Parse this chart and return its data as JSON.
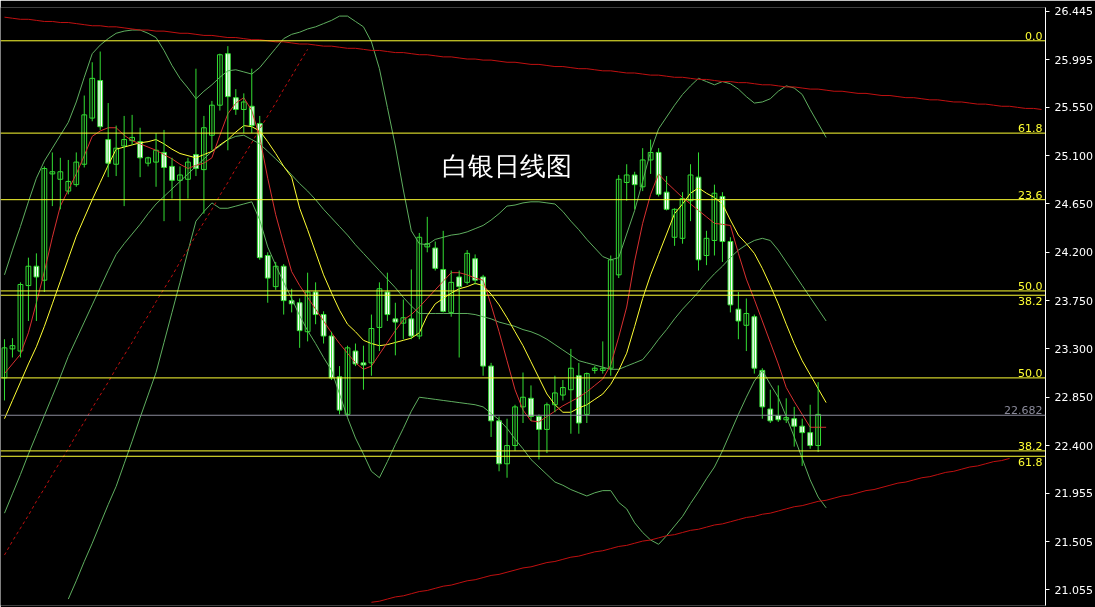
{
  "chart_data": {
    "type": "candlestick",
    "title": "白银日线图",
    "color": "#33dd33",
    "categories": [
      null,
      null,
      null,
      null,
      null,
      null,
      null,
      null,
      null,
      null,
      null,
      null,
      null,
      null,
      null,
      null,
      null,
      null,
      null,
      null,
      null,
      null,
      null,
      null,
      null,
      null,
      null,
      null,
      null,
      null,
      null,
      null,
      null,
      null,
      null,
      null,
      null,
      null,
      null,
      null,
      null,
      null,
      null,
      null,
      null,
      null,
      null,
      null,
      null,
      null,
      null,
      null,
      null,
      null,
      null,
      null,
      null,
      null,
      null,
      null,
      null,
      null,
      null,
      null,
      null,
      null,
      null,
      null,
      null,
      null,
      null,
      null,
      null,
      null,
      null,
      null,
      null,
      null,
      null,
      null,
      null,
      null,
      null,
      null,
      null,
      null,
      null,
      null,
      null,
      null,
      null,
      null,
      null,
      null,
      null,
      null,
      null,
      null,
      null,
      null,
      null,
      null,
      null,
      null,
      null,
      null,
      null,
      null,
      null,
      null,
      null,
      null,
      null,
      null,
      null,
      null,
      null,
      null,
      null,
      null,
      null,
      null,
      null,
      null,
      null,
      null,
      null,
      null,
      null,
      null,
      null
    ],
    "ohlc": [
      [
        23.03,
        23.39,
        22.82,
        23.31
      ],
      [
        23.3,
        23.4,
        23.22,
        23.33
      ],
      [
        23.28,
        23.92,
        23.22,
        23.9
      ],
      [
        23.89,
        24.15,
        23.56,
        24.07
      ],
      [
        24.07,
        24.19,
        23.56,
        23.97
      ],
      [
        23.94,
        25.0,
        23.83,
        24.98
      ],
      [
        24.93,
        25.13,
        24.63,
        24.95
      ],
      [
        24.88,
        25.08,
        24.6,
        24.95
      ],
      [
        24.77,
        25.06,
        24.74,
        24.86
      ],
      [
        24.83,
        25.13,
        24.81,
        25.04
      ],
      [
        25.02,
        25.66,
        24.99,
        25.48
      ],
      [
        25.45,
        25.97,
        25.42,
        25.82
      ],
      [
        25.8,
        26.07,
        25.34,
        25.37
      ],
      [
        25.25,
        25.59,
        24.9,
        25.03
      ],
      [
        25.02,
        25.38,
        24.91,
        25.17
      ],
      [
        25.19,
        25.47,
        24.63,
        25.25
      ],
      [
        25.24,
        25.48,
        25.2,
        25.27
      ],
      [
        25.23,
        25.36,
        24.9,
        25.08
      ],
      [
        25.03,
        25.09,
        25.0,
        25.08
      ],
      [
        25.04,
        25.31,
        24.81,
        25.15
      ],
      [
        25.13,
        25.34,
        24.49,
        24.99
      ],
      [
        25.0,
        25.08,
        24.7,
        24.87
      ],
      [
        24.87,
        25.0,
        24.49,
        24.92
      ],
      [
        24.88,
        25.08,
        24.7,
        25.04
      ],
      [
        25.11,
        25.91,
        24.91,
        24.98
      ],
      [
        24.97,
        25.47,
        24.56,
        25.36
      ],
      [
        25.29,
        25.61,
        25.15,
        25.57
      ],
      [
        25.57,
        26.05,
        25.52,
        26.04
      ],
      [
        26.05,
        26.12,
        25.15,
        25.65
      ],
      [
        25.64,
        25.72,
        25.48,
        25.53
      ],
      [
        25.53,
        25.68,
        25.31,
        25.6
      ],
      [
        25.56,
        25.91,
        25.31,
        25.38
      ],
      [
        25.4,
        25.47,
        24.13,
        24.15
      ],
      [
        24.17,
        24.2,
        23.73,
        23.96
      ],
      [
        23.88,
        24.11,
        23.85,
        24.07
      ],
      [
        24.07,
        24.09,
        23.62,
        23.75
      ],
      [
        23.75,
        23.86,
        23.64,
        23.72
      ],
      [
        23.73,
        23.77,
        23.31,
        23.47
      ],
      [
        23.46,
        24.01,
        23.37,
        23.83
      ],
      [
        23.83,
        23.92,
        23.53,
        23.62
      ],
      [
        23.62,
        23.65,
        23.35,
        23.42
      ],
      [
        23.42,
        23.46,
        23.01,
        23.03
      ],
      [
        23.04,
        23.14,
        22.69,
        22.73
      ],
      [
        22.69,
        23.33,
        22.67,
        23.31
      ],
      [
        23.28,
        23.35,
        23.14,
        23.16
      ],
      [
        23.17,
        23.33,
        22.92,
        23.15
      ],
      [
        23.17,
        23.62,
        23.05,
        23.49
      ],
      [
        23.5,
        23.92,
        23.28,
        23.86
      ],
      [
        23.83,
        24.01,
        23.56,
        23.62
      ],
      [
        23.58,
        23.73,
        23.24,
        23.55
      ],
      [
        23.54,
        23.76,
        23.39,
        23.59
      ],
      [
        23.58,
        24.04,
        23.39,
        23.42
      ],
      [
        23.42,
        24.38,
        23.39,
        24.34
      ],
      [
        24.25,
        24.53,
        24.2,
        24.28
      ],
      [
        24.24,
        24.3,
        24.03,
        24.05
      ],
      [
        24.04,
        24.4,
        23.64,
        23.65
      ],
      [
        23.64,
        24.03,
        23.6,
        23.92
      ],
      [
        23.97,
        24.03,
        23.22,
        23.88
      ],
      [
        23.92,
        24.22,
        23.9,
        24.19
      ],
      [
        24.14,
        24.18,
        23.9,
        23.94
      ],
      [
        23.97,
        23.99,
        23.05,
        23.14
      ],
      [
        23.14,
        23.17,
        22.48,
        22.63
      ],
      [
        22.63,
        22.67,
        22.16,
        22.23
      ],
      [
        22.23,
        22.65,
        22.1,
        22.4
      ],
      [
        22.4,
        22.78,
        22.35,
        22.76
      ],
      [
        22.76,
        23.08,
        22.61,
        22.85
      ],
      [
        22.84,
        22.96,
        22.63,
        22.67
      ],
      [
        22.67,
        22.69,
        22.27,
        22.55
      ],
      [
        22.55,
        22.8,
        22.33,
        22.78
      ],
      [
        22.78,
        23.05,
        22.71,
        22.89
      ],
      [
        22.87,
        23.01,
        22.82,
        22.94
      ],
      [
        22.92,
        23.3,
        22.51,
        23.12
      ],
      [
        23.05,
        23.17,
        22.51,
        22.61
      ],
      [
        22.69,
        23.08,
        22.61,
        23.07
      ],
      [
        23.1,
        23.14,
        23.07,
        23.12
      ],
      [
        23.1,
        23.37,
        23.07,
        23.12
      ],
      [
        23.12,
        24.17,
        23.05,
        24.13
      ],
      [
        23.99,
        24.92,
        23.96,
        24.88
      ],
      [
        24.85,
        25.02,
        24.68,
        24.92
      ],
      [
        24.92,
        24.95,
        24.6,
        24.83
      ],
      [
        24.81,
        25.17,
        24.77,
        25.06
      ],
      [
        25.06,
        25.25,
        24.93,
        25.13
      ],
      [
        25.13,
        25.17,
        24.72,
        24.74
      ],
      [
        24.76,
        24.91,
        24.59,
        24.6
      ],
      [
        24.34,
        24.61,
        24.26,
        24.6
      ],
      [
        24.33,
        24.76,
        24.28,
        24.7
      ],
      [
        24.68,
        25.02,
        24.49,
        24.92
      ],
      [
        24.9,
        25.13,
        24.03,
        24.13
      ],
      [
        24.17,
        24.4,
        24.08,
        24.33
      ],
      [
        24.31,
        24.83,
        24.17,
        24.75
      ],
      [
        24.72,
        24.76,
        24.11,
        24.3
      ],
      [
        24.3,
        24.34,
        23.64,
        23.71
      ],
      [
        23.67,
        23.83,
        23.39,
        23.56
      ],
      [
        23.52,
        23.77,
        23.28,
        23.63
      ],
      [
        23.6,
        23.62,
        23.07,
        23.12
      ],
      [
        23.1,
        23.12,
        22.65,
        22.76
      ],
      [
        22.74,
        22.92,
        22.61,
        22.63
      ],
      [
        22.68,
        22.96,
        22.62,
        22.64
      ],
      [
        22.64,
        22.84,
        22.61,
        22.66
      ],
      [
        22.65,
        22.76,
        22.39,
        22.58
      ],
      [
        22.58,
        22.65,
        22.21,
        22.52
      ],
      [
        22.52,
        22.78,
        22.37,
        22.4
      ],
      [
        22.4,
        22.99,
        22.34,
        22.69
      ],
      null,
      null,
      null,
      null,
      null,
      null,
      null,
      null,
      null,
      null,
      null,
      null,
      null,
      null,
      null,
      null,
      null,
      null,
      null,
      null,
      null,
      null,
      null,
      null,
      null,
      null,
      null,
      null
    ],
    "series": [
      {
        "type": "line",
        "color": "#5fae5f",
        "values": [
          23.99,
          24.22,
          24.44,
          24.67,
          24.89,
          25.05,
          25.17,
          25.29,
          25.41,
          25.6,
          25.83,
          26.05,
          26.13,
          26.19,
          26.24,
          26.26,
          26.27,
          26.27,
          26.24,
          26.2,
          26.08,
          25.94,
          25.82,
          25.73,
          25.63,
          25.7,
          25.76,
          25.83,
          25.89,
          25.9,
          25.88,
          25.86,
          25.92,
          26.01,
          26.1,
          26.19,
          26.23,
          26.25,
          26.28,
          26.3,
          26.33,
          26.36,
          26.4,
          26.4,
          26.35,
          26.3,
          26.16,
          25.91,
          25.55,
          25.19,
          24.78,
          24.4,
          24.28,
          24.27,
          24.32,
          24.34,
          24.36,
          24.37,
          24.39,
          24.42,
          24.45,
          24.5,
          24.56,
          24.63,
          24.64,
          24.66,
          24.67,
          24.67,
          24.66,
          24.65,
          24.58,
          24.49,
          24.41,
          24.32,
          24.24,
          24.16,
          24.13,
          24.15,
          24.37,
          24.59,
          24.86,
          25.14,
          25.35,
          25.46,
          25.57,
          25.67,
          25.75,
          25.82,
          25.79,
          25.76,
          25.79,
          25.77,
          25.72,
          25.65,
          25.59,
          25.6,
          25.63,
          25.7,
          25.75,
          25.73,
          25.67,
          25.53,
          25.4,
          25.27,
          null,
          null,
          null,
          null,
          null,
          null,
          null,
          null,
          null,
          null,
          null,
          null,
          null,
          null,
          null,
          null,
          null,
          null,
          null,
          null,
          null,
          null,
          null,
          null,
          null,
          null,
          null
        ]
      },
      {
        "type": "line",
        "color": "#5fae5f",
        "values": [
          21.77,
          21.95,
          22.13,
          22.32,
          22.5,
          22.68,
          22.86,
          23.04,
          23.23,
          23.39,
          23.55,
          23.71,
          23.87,
          24.03,
          24.18,
          24.28,
          24.37,
          24.46,
          24.56,
          24.65,
          24.72,
          24.79,
          24.86,
          24.93,
          25.0,
          25.07,
          25.14,
          25.19,
          25.25,
          25.28,
          25.29,
          25.25,
          25.21,
          25.14,
          25.07,
          25.0,
          24.92,
          24.84,
          24.77,
          24.69,
          24.6,
          24.52,
          24.44,
          24.36,
          24.27,
          24.19,
          24.11,
          24.03,
          23.95,
          23.87,
          23.78,
          23.7,
          23.63,
          23.63,
          23.63,
          23.63,
          23.63,
          23.63,
          23.63,
          23.62,
          23.6,
          23.58,
          23.55,
          23.53,
          23.51,
          23.48,
          23.46,
          23.43,
          23.39,
          23.34,
          23.29,
          23.24,
          23.19,
          23.17,
          23.15,
          23.13,
          23.11,
          23.11,
          23.14,
          23.17,
          23.2,
          23.29,
          23.39,
          23.48,
          23.58,
          23.67,
          23.75,
          23.83,
          23.92,
          24.0,
          24.07,
          24.15,
          24.22,
          24.27,
          24.31,
          24.33,
          24.31,
          24.22,
          24.11,
          24.0,
          23.89,
          23.78,
          23.67,
          23.56,
          null,
          null,
          null,
          null,
          null,
          null,
          null,
          null,
          null,
          null,
          null,
          null,
          null,
          null,
          null,
          null,
          null,
          null,
          null,
          null,
          null,
          null,
          null,
          null,
          null,
          null,
          null
        ]
      },
      {
        "type": "line",
        "color": "#5fae5f",
        "values": [
          null,
          null,
          null,
          null,
          null,
          null,
          null,
          null,
          20.97,
          21.14,
          21.32,
          21.49,
          21.67,
          21.85,
          22.02,
          22.23,
          22.44,
          22.66,
          22.87,
          23.08,
          23.36,
          23.64,
          23.92,
          24.21,
          24.49,
          24.58,
          24.66,
          24.61,
          24.61,
          24.63,
          24.65,
          24.67,
          24.5,
          24.25,
          24.08,
          23.92,
          23.77,
          23.61,
          23.47,
          23.35,
          23.22,
          23.1,
          22.88,
          22.66,
          22.47,
          22.32,
          22.16,
          22.1,
          22.25,
          22.41,
          22.56,
          22.72,
          22.85,
          22.84,
          22.83,
          22.82,
          22.81,
          22.8,
          22.79,
          22.78,
          22.76,
          22.7,
          22.64,
          22.56,
          22.46,
          22.37,
          22.27,
          22.2,
          22.13,
          22.06,
          22.03,
          21.99,
          21.96,
          21.93,
          21.96,
          21.98,
          21.98,
          21.87,
          21.81,
          21.68,
          21.59,
          21.52,
          21.48,
          21.56,
          21.65,
          21.74,
          21.86,
          21.97,
          22.09,
          22.2,
          22.35,
          22.52,
          22.69,
          22.85,
          23.0,
          23.1,
          22.97,
          22.85,
          22.67,
          22.48,
          22.28,
          22.08,
          21.92,
          21.82,
          null,
          null,
          null,
          null,
          null,
          null,
          null,
          null,
          null,
          null,
          null,
          null,
          null,
          null,
          null,
          null,
          null,
          null,
          null,
          null,
          null,
          null,
          null,
          null,
          null,
          null,
          null
        ]
      },
      {
        "type": "line",
        "color": "#ffff33",
        "values": [
          22.65,
          22.82,
          22.99,
          23.16,
          23.32,
          23.51,
          23.72,
          23.93,
          24.14,
          24.35,
          24.52,
          24.69,
          24.85,
          25.01,
          25.16,
          25.18,
          25.2,
          25.22,
          25.23,
          25.25,
          25.21,
          25.16,
          25.12,
          25.1,
          25.08,
          25.11,
          25.14,
          25.2,
          25.25,
          25.32,
          25.38,
          25.37,
          25.33,
          25.23,
          25.12,
          25.0,
          24.9,
          24.61,
          24.41,
          24.2,
          23.99,
          23.82,
          23.66,
          23.53,
          23.46,
          23.38,
          23.35,
          23.33,
          23.34,
          23.36,
          23.38,
          23.4,
          23.45,
          23.61,
          23.72,
          23.77,
          23.82,
          23.86,
          23.88,
          23.91,
          23.89,
          23.81,
          23.71,
          23.59,
          23.46,
          23.33,
          23.18,
          23.03,
          22.88,
          22.78,
          22.71,
          22.71,
          22.75,
          22.78,
          22.83,
          22.88,
          22.97,
          23.1,
          23.26,
          23.51,
          23.77,
          23.99,
          24.18,
          24.37,
          24.56,
          24.65,
          24.75,
          24.8,
          24.75,
          24.71,
          24.65,
          24.5,
          24.36,
          24.28,
          24.19,
          24.05,
          23.89,
          23.72,
          23.53,
          23.35,
          23.19,
          23.06,
          22.93,
          22.8,
          null,
          null,
          null,
          null,
          null,
          null,
          null,
          null,
          null,
          null,
          null,
          null,
          null,
          null,
          null,
          null,
          null,
          null,
          null,
          null,
          null,
          null,
          null,
          null,
          null,
          null,
          null
        ]
      },
      {
        "type": "line",
        "color": "#d83030",
        "values": [
          23.07,
          23.16,
          23.25,
          23.45,
          23.73,
          24.02,
          24.34,
          24.63,
          24.78,
          24.93,
          25.1,
          25.28,
          25.33,
          25.36,
          25.36,
          25.29,
          25.24,
          25.21,
          25.18,
          25.15,
          25.11,
          25.07,
          25.02,
          24.98,
          25.01,
          25.03,
          25.08,
          25.29,
          25.49,
          25.59,
          25.64,
          25.52,
          25.27,
          24.89,
          24.55,
          24.28,
          24.02,
          23.89,
          23.78,
          23.67,
          23.56,
          23.45,
          23.35,
          23.26,
          23.17,
          23.11,
          23.14,
          23.25,
          23.36,
          23.47,
          23.57,
          23.62,
          23.69,
          23.77,
          23.85,
          23.93,
          24.01,
          24.01,
          23.99,
          23.96,
          23.94,
          23.71,
          23.46,
          23.19,
          22.92,
          22.73,
          22.63,
          22.62,
          22.67,
          22.72,
          22.77,
          22.81,
          22.85,
          22.9,
          22.96,
          23.02,
          23.15,
          23.41,
          23.69,
          24.12,
          24.47,
          24.74,
          24.93,
          24.85,
          24.78,
          24.71,
          24.65,
          24.59,
          24.53,
          24.47,
          24.46,
          24.45,
          24.19,
          23.95,
          23.76,
          23.56,
          23.36,
          23.16,
          22.94,
          22.81,
          22.69,
          22.57,
          22.57,
          22.57,
          null,
          null,
          null,
          null,
          null,
          null,
          null,
          null,
          null,
          null,
          null,
          null,
          null,
          null,
          null,
          null,
          null,
          null,
          null,
          null,
          null,
          null,
          null,
          null,
          null,
          null,
          null
        ]
      },
      {
        "type": "line",
        "color": "#c01010",
        "values": [
          26.39,
          26.38,
          26.37,
          26.37,
          26.36,
          26.35,
          26.35,
          26.34,
          26.34,
          26.33,
          26.32,
          26.31,
          26.31,
          26.3,
          26.3,
          26.29,
          26.28,
          26.27,
          26.27,
          26.26,
          26.26,
          26.25,
          26.24,
          26.24,
          26.23,
          26.22,
          26.22,
          26.21,
          26.2,
          26.2,
          26.19,
          26.18,
          26.18,
          26.17,
          26.16,
          26.16,
          26.15,
          26.14,
          26.14,
          26.13,
          26.12,
          26.12,
          26.11,
          26.1,
          26.1,
          26.09,
          26.08,
          26.08,
          26.07,
          26.06,
          26.06,
          26.05,
          26.04,
          26.04,
          26.03,
          26.02,
          26.02,
          26.01,
          26.0,
          26.0,
          25.99,
          25.99,
          25.98,
          25.97,
          25.97,
          25.96,
          25.95,
          25.95,
          25.94,
          25.93,
          25.93,
          25.92,
          25.91,
          25.91,
          25.9,
          25.89,
          25.89,
          25.88,
          25.87,
          25.87,
          25.86,
          25.85,
          25.85,
          25.84,
          25.83,
          25.83,
          25.82,
          25.81,
          25.81,
          25.8,
          25.79,
          25.79,
          25.78,
          25.78,
          25.77,
          25.76,
          25.76,
          25.75,
          25.74,
          25.74,
          25.73,
          25.72,
          25.72,
          25.71,
          25.7,
          25.7,
          25.69,
          25.68,
          25.68,
          25.67,
          25.66,
          25.66,
          25.65,
          25.64,
          25.64,
          25.63,
          25.62,
          25.62,
          25.61,
          25.6,
          25.6,
          25.59,
          25.58,
          25.58,
          25.57,
          25.56,
          25.56,
          25.55,
          25.54,
          25.54,
          25.53
        ]
      },
      {
        "type": "line",
        "color": "#c01010",
        "values": [
          null,
          null,
          null,
          null,
          null,
          null,
          null,
          null,
          null,
          null,
          null,
          null,
          null,
          null,
          null,
          null,
          null,
          null,
          null,
          null,
          null,
          null,
          null,
          null,
          null,
          null,
          null,
          null,
          null,
          null,
          null,
          null,
          null,
          null,
          null,
          null,
          null,
          null,
          null,
          null,
          null,
          null,
          null,
          null,
          null,
          null,
          20.94,
          20.95,
          20.97,
          20.99,
          21.0,
          21.02,
          21.04,
          21.05,
          21.07,
          21.09,
          21.1,
          21.12,
          21.14,
          21.15,
          21.17,
          21.19,
          21.2,
          21.22,
          21.24,
          21.26,
          21.27,
          21.29,
          21.31,
          21.32,
          21.34,
          21.36,
          21.37,
          21.39,
          21.41,
          21.42,
          21.44,
          21.46,
          21.47,
          21.49,
          21.51,
          21.52,
          21.54,
          21.56,
          21.57,
          21.59,
          21.61,
          21.62,
          21.64,
          21.66,
          21.67,
          21.69,
          21.71,
          21.73,
          21.74,
          21.76,
          21.77,
          21.79,
          21.81,
          21.83,
          21.84,
          21.86,
          21.88,
          21.89,
          21.91,
          21.93,
          21.94,
          21.96,
          21.98,
          21.99,
          22.01,
          22.03,
          22.05,
          22.06,
          22.08,
          22.1,
          22.11,
          22.13,
          22.15,
          22.16,
          22.18,
          22.2,
          22.21,
          22.23,
          22.25,
          22.26,
          22.28,
          null,
          null,
          null,
          null
        ]
      },
      {
        "type": "line",
        "color": "#c01010",
        "line_style": "dashed",
        "values": [
          21.38,
          21.51,
          21.63,
          21.75,
          21.88,
          22.0,
          22.13,
          22.25,
          22.37,
          22.5,
          22.62,
          22.75,
          22.87,
          22.99,
          23.12,
          23.24,
          23.36,
          23.49,
          23.61,
          23.74,
          23.86,
          23.98,
          24.11,
          24.23,
          24.36,
          24.48,
          24.6,
          24.73,
          24.85,
          24.98,
          25.1,
          25.22,
          25.35,
          25.47,
          25.59,
          25.72,
          25.84,
          25.97,
          26.09,
          null,
          null,
          null,
          null,
          null,
          null,
          null,
          null,
          null,
          null,
          null,
          null,
          null,
          null,
          null,
          null,
          null,
          null,
          null,
          null,
          null,
          null,
          null,
          null,
          null,
          null,
          null,
          null,
          null,
          null,
          null,
          null,
          null,
          null,
          null,
          null,
          null,
          null,
          null,
          null,
          null,
          null,
          null,
          null,
          null,
          null,
          null,
          null,
          null,
          null,
          null,
          null,
          null,
          null,
          null,
          null,
          null,
          null,
          null,
          null,
          null,
          null,
          null,
          null,
          null,
          null,
          null,
          null,
          null,
          null,
          null,
          null,
          null,
          null,
          null,
          null,
          null,
          null,
          null,
          null,
          null,
          null,
          null,
          null,
          null,
          null,
          null,
          null,
          null,
          null,
          null,
          null
        ]
      }
    ],
    "ylim": [
      20.91,
      26.48
    ],
    "yticks": [
      21.055,
      21.505,
      21.955,
      {
        "value": 22.4,
        "label": "22.400"
      },
      {
        "value": 22.85,
        "label": "22.850"
      },
      {
        "value": 23.3,
        "label": "23.300"
      },
      {
        "value": 23.75,
        "label": "23.750"
      },
      {
        "value": 24.2,
        "label": "24.200"
      },
      {
        "value": 24.65,
        "label": "24.650"
      },
      {
        "value": 25.1,
        "label": "25.100"
      },
      {
        "value": 25.55,
        "label": "25.550"
      },
      25.995,
      26.445
    ],
    "ref_lines": [
      {
        "axis": "y",
        "value": 26.17,
        "color": "#ffff33"
      },
      {
        "axis": "y",
        "value": 25.31,
        "color": "#ffff33"
      },
      {
        "axis": "y",
        "value": 24.69,
        "color": "#ffff33"
      },
      {
        "axis": "y",
        "value": 23.84,
        "color": "#ffff33"
      },
      {
        "axis": "y",
        "value": 23.8,
        "color": "#ffff33"
      },
      {
        "axis": "y",
        "value": 23.03,
        "color": "#ffff33"
      },
      {
        "axis": "y",
        "value": 22.682,
        "label": "22.682",
        "color": "#8a8a9a"
      },
      {
        "axis": "y",
        "value": 22.35,
        "color": "#ffff33"
      },
      {
        "axis": "y",
        "value": 22.3,
        "color": "#ffff33"
      }
    ],
    "annotations": [
      {
        "text": "0.0",
        "y": 26.17
      },
      {
        "text": "61.8",
        "y": 25.31
      },
      {
        "text": "23.6",
        "y": 24.69
      },
      {
        "text": "50.0",
        "y": 23.84
      },
      {
        "text": "38.2",
        "y": 23.8
      },
      {
        "text": "50.0",
        "y": 23.03
      },
      {
        "text": "38.2",
        "y": 22.35
      },
      {
        "text": "61.8",
        "y": 22.3
      }
    ],
    "tick_labels": "y"
  }
}
